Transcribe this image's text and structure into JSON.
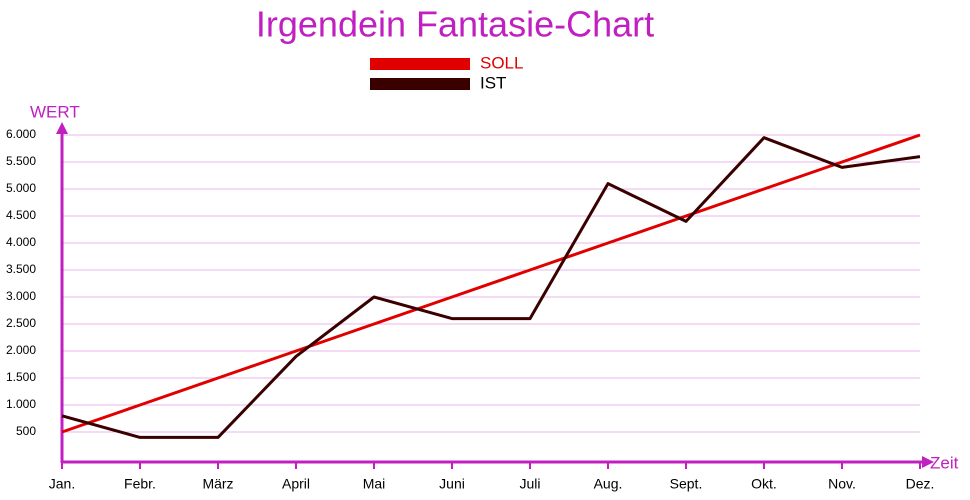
{
  "chart_data": {
    "type": "line",
    "title": "Irgendein Fantasie-Chart",
    "y_label": "WERT",
    "x_label": "Zeit",
    "categories": [
      "Jan.",
      "Febr.",
      "März",
      "April",
      "Mai",
      "Juni",
      "Juli",
      "Aug.",
      "Sept.",
      "Okt.",
      "Nov.",
      "Dez."
    ],
    "series": [
      {
        "name": "SOLL",
        "color": "#e00000",
        "values": [
          500,
          1000,
          1500,
          2000,
          2500,
          3000,
          3500,
          4000,
          4500,
          5000,
          5500,
          6000
        ]
      },
      {
        "name": "IST",
        "color": "#3a0000",
        "values": [
          800,
          400,
          400,
          1900,
          3000,
          2600,
          2600,
          5100,
          4400,
          5950,
          5400,
          5600
        ]
      }
    ],
    "ylim": [
      0,
      6000
    ],
    "yticks": [
      500,
      {
        "value": 1000,
        "label": "1.000"
      },
      {
        "value": 1500,
        "label": "1.500"
      },
      {
        "value": 2000,
        "label": "2.000"
      },
      {
        "value": 2500,
        "label": "2.500"
      },
      {
        "value": 3000,
        "label": "3.000"
      },
      {
        "value": 3500,
        "label": "3.500"
      },
      {
        "value": 4000,
        "label": "4.000"
      },
      {
        "value": 4500,
        "label": "4.500"
      },
      {
        "value": 5000,
        "label": "5.000"
      },
      {
        "value": 5500,
        "label": "5.500"
      },
      {
        "value": 6000,
        "label": "6.000"
      }
    ],
    "grid": true
  }
}
